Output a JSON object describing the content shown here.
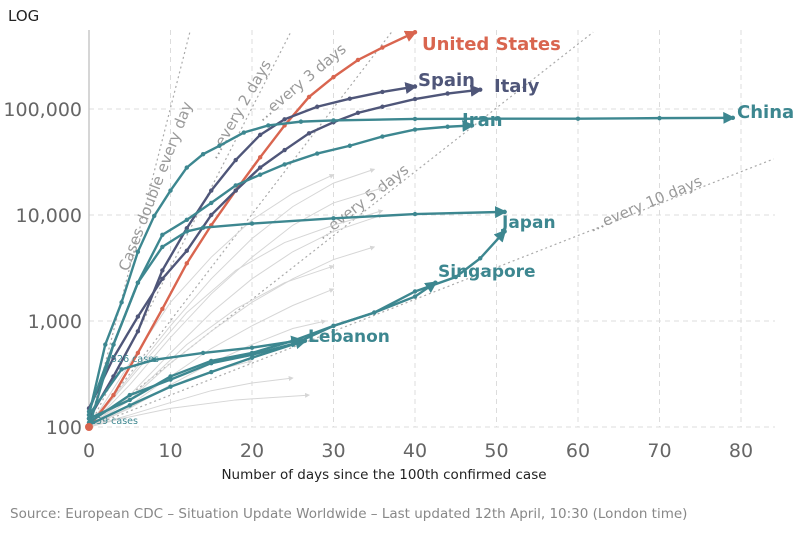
{
  "chart_data": {
    "type": "line",
    "scale_label": "LOG",
    "xlabel": "Number of days since the 100th confirmed case",
    "ylabel": "",
    "y_scale": "log",
    "xlim": [
      0,
      84
    ],
    "ylim": [
      100,
      530000
    ],
    "x_ticks": [
      "0",
      "10",
      "20",
      "30",
      "40",
      "50",
      "60",
      "70",
      "80"
    ],
    "y_ticks": [
      {
        "value": 100,
        "label": "100"
      },
      {
        "value": 1000,
        "label": "1,000"
      },
      {
        "value": 10000,
        "label": "10,000"
      },
      {
        "value": 100000,
        "label": "100,000"
      }
    ],
    "grid": true,
    "source": "Source: European CDC – Situation Update Worldwide – Last updated 12th April, 10:30 (London time)",
    "colors": {
      "us": "#d9654f",
      "europe": "#4f5679",
      "asia": "#3d8790",
      "other": "#d6d6d6",
      "reference": "#aaaaaa"
    },
    "reference_lines": [
      {
        "label": "Cases double every day",
        "doubling_days": 1
      },
      {
        "label": "...every 2 days",
        "doubling_days": 2
      },
      {
        "label": "...every 3 days",
        "doubling_days": 3
      },
      {
        "label": "...every 5 days",
        "doubling_days": 5
      },
      {
        "label": "...every 10 days",
        "doubling_days": 10
      }
    ],
    "annotations": [
      "526 cases",
      "139 cases"
    ],
    "series": [
      {
        "name": "United States",
        "color_key": "us",
        "points": [
          [
            0,
            100
          ],
          [
            3,
            200
          ],
          [
            6,
            500
          ],
          [
            9,
            1300
          ],
          [
            12,
            3500
          ],
          [
            15,
            8000
          ],
          [
            18,
            17000
          ],
          [
            21,
            35000
          ],
          [
            24,
            70000
          ],
          [
            27,
            130000
          ],
          [
            30,
            200000
          ],
          [
            33,
            290000
          ],
          [
            36,
            380000
          ],
          [
            40,
            530000
          ]
        ]
      },
      {
        "name": "Spain",
        "color_key": "europe",
        "points": [
          [
            0,
            120
          ],
          [
            3,
            300
          ],
          [
            6,
            800
          ],
          [
            9,
            3000
          ],
          [
            12,
            7500
          ],
          [
            15,
            17000
          ],
          [
            18,
            33000
          ],
          [
            21,
            57000
          ],
          [
            24,
            80000
          ],
          [
            28,
            105000
          ],
          [
            32,
            125000
          ],
          [
            36,
            145000
          ],
          [
            40,
            163000
          ]
        ]
      },
      {
        "name": "Italy",
        "color_key": "europe",
        "points": [
          [
            0,
            150
          ],
          [
            3,
            450
          ],
          [
            6,
            1100
          ],
          [
            9,
            2500
          ],
          [
            12,
            4600
          ],
          [
            15,
            10000
          ],
          [
            18,
            17000
          ],
          [
            21,
            28000
          ],
          [
            24,
            41000
          ],
          [
            27,
            59000
          ],
          [
            30,
            75000
          ],
          [
            33,
            92000
          ],
          [
            36,
            105000
          ],
          [
            40,
            124000
          ],
          [
            44,
            140000
          ],
          [
            48,
            152000
          ]
        ]
      },
      {
        "name": "China",
        "color_key": "asia",
        "points": [
          [
            0,
            130
          ],
          [
            2,
            600
          ],
          [
            4,
            1500
          ],
          [
            6,
            4500
          ],
          [
            8,
            9800
          ],
          [
            10,
            17000
          ],
          [
            12,
            28000
          ],
          [
            14,
            37500
          ],
          [
            16,
            45000
          ],
          [
            19,
            60000
          ],
          [
            22,
            70000
          ],
          [
            26,
            76000
          ],
          [
            30,
            78000
          ],
          [
            40,
            80500
          ],
          [
            50,
            81000
          ],
          [
            60,
            81000
          ],
          [
            70,
            82000
          ],
          [
            79,
            82500
          ]
        ]
      },
      {
        "name": "Iran",
        "color_key": "asia",
        "points": [
          [
            0,
            140
          ],
          [
            3,
            600
          ],
          [
            6,
            2300
          ],
          [
            9,
            6500
          ],
          [
            12,
            9000
          ],
          [
            15,
            13000
          ],
          [
            18,
            19000
          ],
          [
            21,
            24000
          ],
          [
            24,
            30000
          ],
          [
            28,
            38000
          ],
          [
            32,
            45000
          ],
          [
            36,
            55000
          ],
          [
            40,
            64000
          ],
          [
            44,
            68000
          ],
          [
            47,
            70000
          ]
        ]
      },
      {
        "name": "",
        "color_key": "asia",
        "points": [
          [
            0,
            100
          ],
          [
            3,
            600
          ],
          [
            6,
            2300
          ],
          [
            9,
            5000
          ],
          [
            12,
            7000
          ],
          [
            14,
            7600
          ],
          [
            20,
            8300
          ],
          [
            30,
            9300
          ],
          [
            40,
            10200
          ],
          [
            51,
            10700
          ]
        ]
      },
      {
        "name": "Japan",
        "color_key": "asia",
        "points": [
          [
            0,
            105
          ],
          [
            5,
            160
          ],
          [
            10,
            240
          ],
          [
            15,
            330
          ],
          [
            20,
            450
          ],
          [
            25,
            600
          ],
          [
            30,
            900
          ],
          [
            35,
            1200
          ],
          [
            40,
            1900
          ],
          [
            45,
            2600
          ],
          [
            48,
            3900
          ],
          [
            51,
            7000
          ]
        ]
      },
      {
        "name": "Singapore",
        "color_key": "asia",
        "points": [
          [
            0,
            120
          ],
          [
            5,
            180
          ],
          [
            10,
            300
          ],
          [
            15,
            420
          ],
          [
            20,
            500
          ],
          [
            25,
            650
          ],
          [
            30,
            900
          ],
          [
            35,
            1200
          ],
          [
            40,
            1700
          ],
          [
            42.5,
            2300
          ]
        ]
      },
      {
        "name": "Lebanon",
        "color_key": "asia",
        "points": [
          [
            0,
            110
          ],
          [
            5,
            200
          ],
          [
            10,
            280
          ],
          [
            15,
            400
          ],
          [
            20,
            480
          ],
          [
            26.5,
            650
          ]
        ]
      },
      {
        "name": "",
        "color_key": "asia",
        "points": [
          [
            0,
            130
          ],
          [
            4,
            350
          ],
          [
            8,
            430
          ],
          [
            14,
            500
          ],
          [
            20,
            560
          ],
          [
            26,
            660
          ]
        ]
      },
      {
        "name": "",
        "color_key": "other",
        "points": [
          [
            0,
            100
          ],
          [
            5,
            300
          ],
          [
            10,
            900
          ],
          [
            15,
            2500
          ],
          [
            20,
            6000
          ],
          [
            25,
            12000
          ],
          [
            30,
            20000
          ],
          [
            35,
            27000
          ]
        ]
      },
      {
        "name": "",
        "color_key": "other",
        "points": [
          [
            0,
            100
          ],
          [
            5,
            250
          ],
          [
            10,
            700
          ],
          [
            15,
            1800
          ],
          [
            20,
            4000
          ],
          [
            25,
            8000
          ],
          [
            30,
            13000
          ],
          [
            36,
            18000
          ]
        ]
      },
      {
        "name": "",
        "color_key": "other",
        "points": [
          [
            0,
            100
          ],
          [
            5,
            200
          ],
          [
            10,
            500
          ],
          [
            15,
            1200
          ],
          [
            20,
            2500
          ],
          [
            25,
            4500
          ],
          [
            30,
            7000
          ],
          [
            36,
            10000
          ]
        ]
      },
      {
        "name": "",
        "color_key": "other",
        "points": [
          [
            0,
            100
          ],
          [
            5,
            180
          ],
          [
            10,
            400
          ],
          [
            15,
            800
          ],
          [
            20,
            1500
          ],
          [
            25,
            2500
          ],
          [
            30,
            3800
          ],
          [
            35,
            5000
          ]
        ]
      },
      {
        "name": "",
        "color_key": "other",
        "points": [
          [
            0,
            100
          ],
          [
            5,
            160
          ],
          [
            10,
            300
          ],
          [
            15,
            550
          ],
          [
            20,
            900
          ],
          [
            25,
            1400
          ],
          [
            30,
            2000
          ]
        ]
      },
      {
        "name": "",
        "color_key": "other",
        "points": [
          [
            0,
            100
          ],
          [
            5,
            150
          ],
          [
            10,
            250
          ],
          [
            15,
            400
          ],
          [
            20,
            600
          ],
          [
            25,
            850
          ],
          [
            29,
            1000
          ]
        ]
      },
      {
        "name": "",
        "color_key": "other",
        "points": [
          [
            0,
            100
          ],
          [
            4,
            140
          ],
          [
            8,
            200
          ],
          [
            12,
            280
          ],
          [
            16,
            350
          ],
          [
            20,
            420
          ]
        ]
      },
      {
        "name": "",
        "color_key": "other",
        "points": [
          [
            0,
            100
          ],
          [
            5,
            130
          ],
          [
            10,
            170
          ],
          [
            15,
            220
          ],
          [
            20,
            260
          ],
          [
            25,
            290
          ]
        ]
      },
      {
        "name": "",
        "color_key": "other",
        "points": [
          [
            0,
            100
          ],
          [
            5,
            400
          ],
          [
            10,
            1500
          ],
          [
            15,
            4000
          ],
          [
            20,
            9000
          ],
          [
            25,
            16000
          ],
          [
            30,
            24000
          ]
        ]
      },
      {
        "name": "",
        "color_key": "other",
        "points": [
          [
            0,
            100
          ],
          [
            6,
            350
          ],
          [
            12,
            1200
          ],
          [
            18,
            3000
          ],
          [
            24,
            5500
          ],
          [
            30,
            8000
          ],
          [
            36,
            11000
          ]
        ]
      },
      {
        "name": "",
        "color_key": "other",
        "points": [
          [
            0,
            100
          ],
          [
            6,
            220
          ],
          [
            12,
            600
          ],
          [
            18,
            1300
          ],
          [
            24,
            2300
          ],
          [
            30,
            3300
          ]
        ]
      },
      {
        "name": "",
        "color_key": "other",
        "points": [
          [
            0,
            100
          ],
          [
            4,
            120
          ],
          [
            10,
            150
          ],
          [
            18,
            180
          ],
          [
            27,
            200
          ]
        ]
      }
    ]
  }
}
